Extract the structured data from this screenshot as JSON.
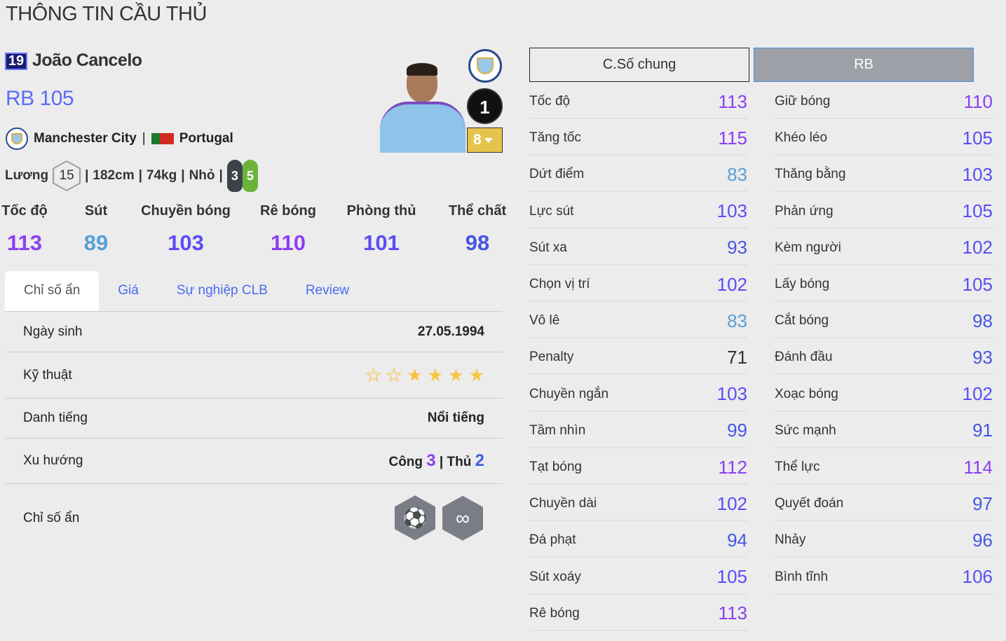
{
  "page_title": "THÔNG TIN CẦU THỦ",
  "player": {
    "season_badge": "19",
    "name": "João Cancelo",
    "position": "RB",
    "ovr": "105",
    "club": "Manchester City",
    "nation": "Portugal",
    "salary_label": "Lương",
    "salary": "15",
    "height": "182cm",
    "weight": "74kg",
    "body": "Nhỏ",
    "left_foot": "3",
    "right_foot": "5",
    "rank": "1",
    "upgrade_level": "8"
  },
  "main_stats": [
    {
      "label": "Tốc độ",
      "value": "113",
      "tier": "c110"
    },
    {
      "label": "Sút",
      "value": "89",
      "tier": "c80"
    },
    {
      "label": "Chuyền bóng",
      "value": "103",
      "tier": "c100"
    },
    {
      "label": "Rê bóng",
      "value": "110",
      "tier": "c110"
    },
    {
      "label": "Phòng thủ",
      "value": "101",
      "tier": "c100"
    },
    {
      "label": "Thể chất",
      "value": "98",
      "tier": "c90"
    }
  ],
  "tabs": [
    "Chỉ số ẩn",
    "Giá",
    "Sự nghiệp CLB",
    "Review"
  ],
  "details": {
    "birth_label": "Ngày sinh",
    "birth": "27.05.1994",
    "skill_label": "Kỹ thuật",
    "skill_stars": 4,
    "skill_stars_max": 6,
    "rep_label": "Danh tiếng",
    "rep": "Nổi tiếng",
    "work_label": "Xu hướng",
    "att_label": "Công",
    "att": "3",
    "def_label": "Thủ",
    "def": "2",
    "hidden_label": "Chỉ số ẩn",
    "hidden_traits": [
      "speed-dribbler-icon",
      "flair-icon"
    ]
  },
  "stat_tabs": [
    "C.Số chung",
    "RB"
  ],
  "stats_left": [
    [
      "Tốc độ",
      "113"
    ],
    [
      "Tăng tốc",
      "115"
    ],
    [
      "Dứt điểm",
      "83"
    ],
    [
      "Lực sút",
      "103"
    ],
    [
      "Sút xa",
      "93"
    ],
    [
      "Chọn vị trí",
      "102"
    ],
    [
      "Vô lê",
      "83"
    ],
    [
      "Penalty",
      "71"
    ],
    [
      "Chuyền ngắn",
      "103"
    ],
    [
      "Tầm nhìn",
      "99"
    ],
    [
      "Tạt bóng",
      "112"
    ],
    [
      "Chuyền dài",
      "102"
    ],
    [
      "Đá phạt",
      "94"
    ],
    [
      "Sút xoáy",
      "105"
    ],
    [
      "Rê bóng",
      "113"
    ]
  ],
  "stats_right": [
    [
      "Giữ bóng",
      "110"
    ],
    [
      "Khéo léo",
      "105"
    ],
    [
      "Thăng bằng",
      "103"
    ],
    [
      "Phản ứng",
      "105"
    ],
    [
      "Kèm người",
      "102"
    ],
    [
      "Lấy bóng",
      "105"
    ],
    [
      "Cắt bóng",
      "98"
    ],
    [
      "Đánh đầu",
      "93"
    ],
    [
      "Xoạc bóng",
      "102"
    ],
    [
      "Sức mạnh",
      "91"
    ],
    [
      "Thể lực",
      "114"
    ],
    [
      "Quyết đoán",
      "97"
    ],
    [
      "Nhảy",
      "96"
    ],
    [
      "Bình tĩnh",
      "106"
    ]
  ],
  "colors": {
    "110+": "#8b3ff2",
    "100+": "#5b4cf5",
    "90+": "#4656e0",
    "80+": "#5a9fd4",
    "70+": "#333333"
  }
}
